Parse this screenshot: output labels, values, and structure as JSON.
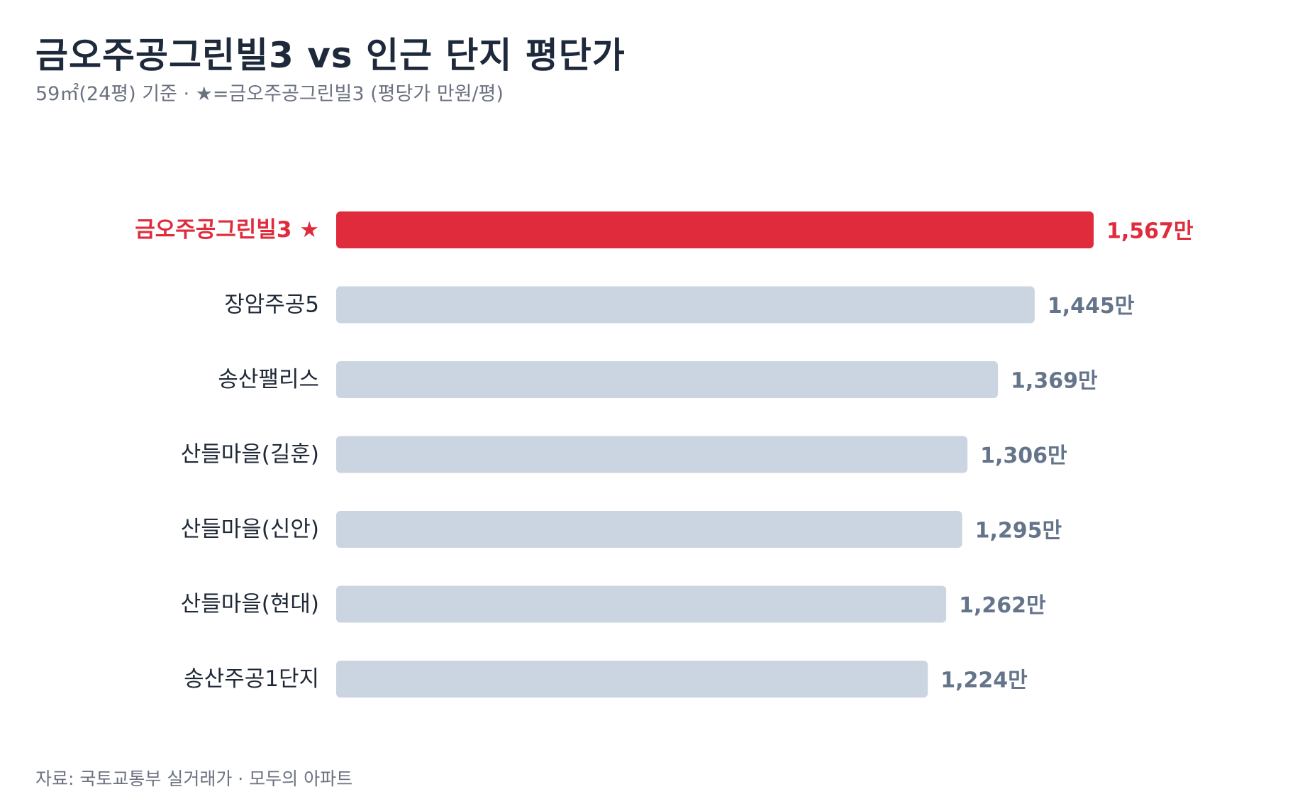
{
  "title": "금오주공그린빌3 vs 인근 단지 평단가",
  "subtitle": "59㎡(24평) 기준 · ★=금오주공그린빌3 (평당가 만원/평)",
  "source": "자료: 국토교통부 실거래가 · 모두의 아파트",
  "colors": {
    "highlight": "#e02b3c",
    "bar": "#cbd5e1",
    "value_text": "#64748b"
  },
  "chart_data": {
    "type": "bar",
    "orientation": "horizontal",
    "title": "금오주공그린빌3 vs 인근 단지 평단가",
    "subtitle": "59㎡(24평) 기준 · ★=금오주공그린빌3 (평당가 만원/평)",
    "unit_suffix": "만",
    "highlight_index": 0,
    "categories": [
      "금오주공그린빌3 ★",
      "장암주공5",
      "송산팰리스",
      "산들마을(길훈)",
      "산들마을(신안)",
      "산들마을(현대)",
      "송산주공1단지"
    ],
    "values": [
      1567,
      1445,
      1369,
      1306,
      1295,
      1262,
      1224
    ],
    "value_labels": [
      "1,567만",
      "1,445만",
      "1,369만",
      "1,306만",
      "1,295만",
      "1,262만",
      "1,224만"
    ],
    "xlim": [
      0,
      1567
    ],
    "grid": false,
    "legend": "none"
  }
}
